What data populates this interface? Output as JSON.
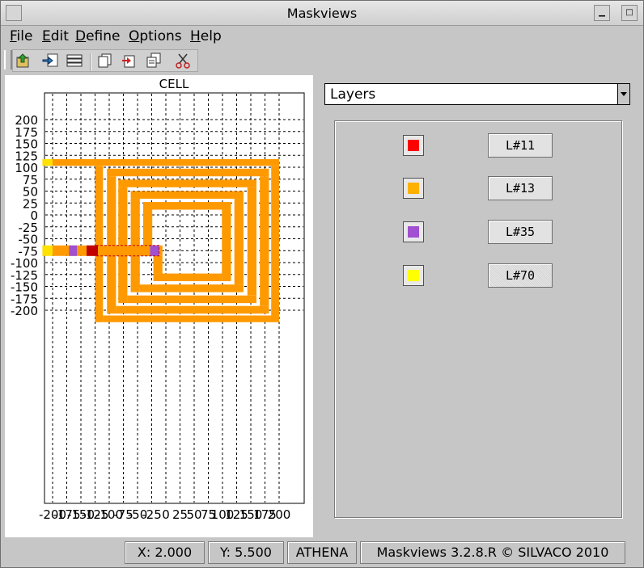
{
  "window": {
    "title": "Maskviews"
  },
  "menu": [
    {
      "key": "F",
      "rest": "ile"
    },
    {
      "key": "E",
      "rest": "dit"
    },
    {
      "key": "D",
      "rest": "efine"
    },
    {
      "key": "O",
      "rest": "ptions"
    },
    {
      "key": "H",
      "rest": "elp"
    }
  ],
  "toolbar": {
    "icons": [
      "open-icon",
      "import-icon",
      "layers-stack-icon",
      "copy-icon",
      "delete-icon",
      "duplicate-icon",
      "cut-icon"
    ]
  },
  "chart_data": {
    "type": "layout",
    "title": "CELL",
    "xlabel": "",
    "ylabel": "",
    "xlim": [
      -225,
      225
    ],
    "ylim": [
      -225,
      225
    ],
    "grid": true,
    "y_ticks": [
      "200",
      "175",
      "150",
      "125",
      "100",
      "75",
      "50",
      "25",
      "0",
      "-25",
      "-50",
      "-75",
      "-100",
      "-125",
      "-150",
      "-175",
      "-200"
    ],
    "x_ticks": [
      "-200",
      "-175",
      "-150",
      "-125",
      "-100",
      "-75",
      "-50",
      "-25",
      "0",
      "25",
      "50",
      "75",
      "100",
      "125",
      "150",
      "175",
      "200"
    ],
    "shapes": [
      {
        "layer": "L#13",
        "x": [
          -200,
          200
        ],
        "y": [
          103,
          117
        ]
      },
      {
        "layer": "L#13",
        "x": [
          -125,
          -111
        ],
        "y": [
          -225,
          103
        ]
      },
      {
        "layer": "L#13",
        "x": [
          -111,
          200
        ],
        "y": [
          -225,
          -211
        ]
      },
      {
        "layer": "L#13",
        "x": [
          186,
          200
        ],
        "y": [
          -211,
          103
        ]
      },
      {
        "layer": "L#13",
        "x": [
          -104,
          182
        ],
        "y": [
          81,
          97
        ]
      },
      {
        "layer": "L#13",
        "x": [
          -104,
          -88
        ],
        "y": [
          -207,
          81
        ]
      },
      {
        "layer": "L#13",
        "x": [
          -88,
          182
        ],
        "y": [
          -207,
          -191
        ]
      },
      {
        "layer": "L#13",
        "x": [
          166,
          182
        ],
        "y": [
          -191,
          81
        ]
      },
      {
        "layer": "L#13",
        "x": [
          -84,
          160
        ],
        "y": [
          58,
          74
        ]
      },
      {
        "layer": "L#13",
        "x": [
          -84,
          -68
        ],
        "y": [
          -185,
          58
        ]
      },
      {
        "layer": "L#13",
        "x": [
          -68,
          160
        ],
        "y": [
          -185,
          -169
        ]
      },
      {
        "layer": "L#13",
        "x": [
          144,
          160
        ],
        "y": [
          -169,
          58
        ]
      },
      {
        "layer": "L#13",
        "x": [
          -62,
          137
        ],
        "y": [
          34,
          50
        ]
      },
      {
        "layer": "L#13",
        "x": [
          -62,
          -46
        ],
        "y": [
          -162,
          34
        ]
      },
      {
        "layer": "L#13",
        "x": [
          -46,
          137
        ],
        "y": [
          -162,
          -146
        ]
      },
      {
        "layer": "L#13",
        "x": [
          121,
          137
        ],
        "y": [
          -146,
          34
        ]
      },
      {
        "layer": "L#13",
        "x": [
          -40,
          115
        ],
        "y": [
          11,
          27
        ]
      },
      {
        "layer": "L#13",
        "x": [
          -40,
          -24
        ],
        "y": [
          -86,
          11
        ]
      },
      {
        "layer": "L#13",
        "x": [
          99,
          115
        ],
        "y": [
          -139,
          11
        ]
      },
      {
        "layer": "L#13",
        "x": [
          -22,
          99
        ],
        "y": [
          -139,
          -123
        ]
      },
      {
        "layer": "L#13",
        "x": [
          -22,
          -6
        ],
        "y": [
          -123,
          -86
        ]
      },
      {
        "layer": "L#13",
        "x": [
          -200,
          -6
        ],
        "y": [
          -86,
          -64
        ]
      },
      {
        "layer": "L#70",
        "x": [
          -218,
          -200
        ],
        "y": [
          103,
          117
        ]
      },
      {
        "layer": "L#70",
        "x": [
          -218,
          -200
        ],
        "y": [
          -86,
          -64
        ]
      },
      {
        "layer": "L#35",
        "x": [
          -171,
          -157
        ],
        "y": [
          -86,
          -64
        ]
      },
      {
        "layer": "L#35",
        "x": [
          -28,
          -12
        ],
        "y": [
          -86,
          -64
        ]
      },
      {
        "layer": "L#11",
        "x": [
          -140,
          -120
        ],
        "y": [
          -86,
          -64
        ]
      }
    ]
  },
  "layers_panel": {
    "selector": "Layers",
    "layers": [
      {
        "name": "L#11",
        "color": "#ff0000"
      },
      {
        "name": "L#13",
        "color": "#ffb000"
      },
      {
        "name": "L#35",
        "color": "#a050d0"
      },
      {
        "name": "L#70",
        "color": "#ffff00"
      }
    ]
  },
  "colors": {
    "L#11": "#c00000",
    "L#13": "#ff9900",
    "L#35": "#a050d0",
    "L#70": "#ffe000"
  },
  "status": {
    "x": "X: 2.000",
    "y": "Y: 5.500",
    "tool": "ATHENA",
    "app": "Maskviews 3.2.8.R © SILVACO 2010"
  }
}
